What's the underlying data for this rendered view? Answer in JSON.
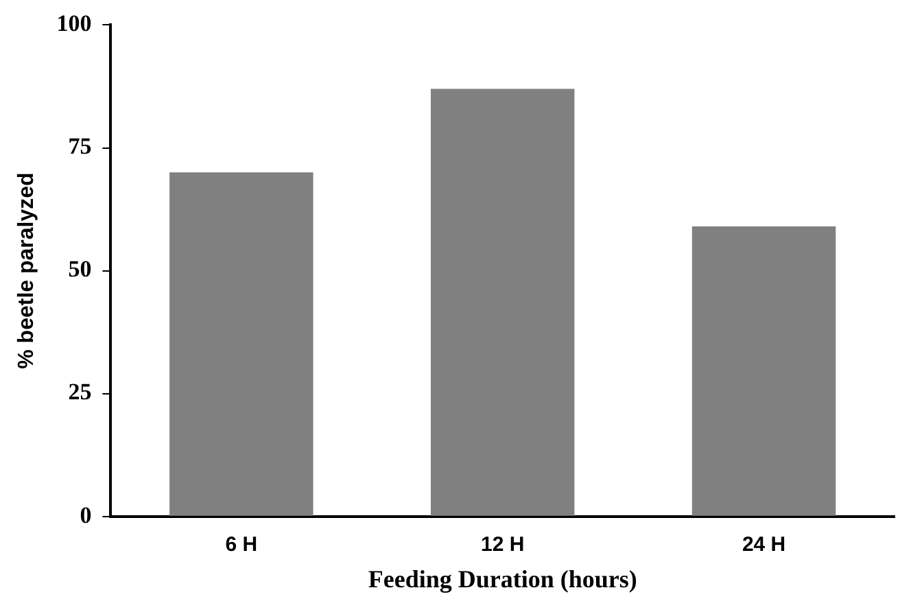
{
  "chart_data": {
    "type": "bar",
    "xlabel": "Feeding Duration (hours)",
    "ylabel": "% beetle paralyzed",
    "categories": [
      "6 H",
      "12 H",
      "24 H"
    ],
    "values": [
      70,
      87,
      59
    ],
    "color": "#808080",
    "ylim": [
      0,
      100
    ],
    "yticks": [
      0,
      25,
      50,
      75,
      100
    ],
    "grid": false,
    "legend": false
  }
}
